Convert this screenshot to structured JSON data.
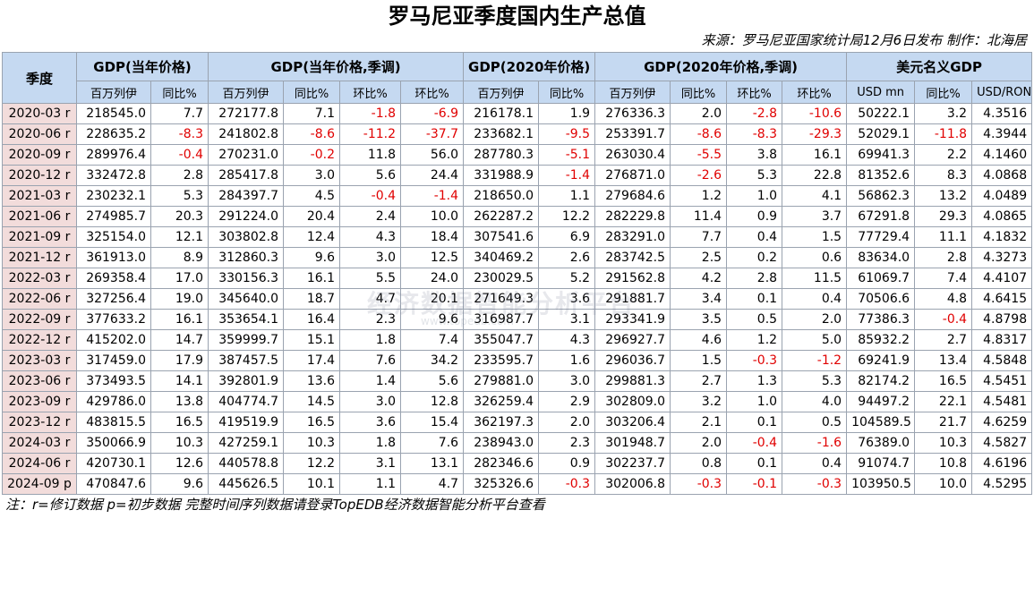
{
  "title": "罗马尼亚季度国内生产总值",
  "source": "来源：罗马尼亚国家统计局12月6日发布  制作：北海居",
  "watermark": {
    "text": "经济数据智能分析平台",
    "url": "www.topedb.com"
  },
  "header": {
    "quarter": "季度",
    "groups": [
      "GDP(当年价格)",
      "GDP(当年价格,季调)",
      "GDP(2020年价格)",
      "GDP(2020年价格,季调)",
      "美元名义GDP"
    ],
    "sub": [
      "百万列伊",
      "同比%",
      "百万列伊",
      "同比%",
      "环比%",
      "环比%",
      "百万列伊",
      "同比%",
      "百万列伊",
      "同比%",
      "环比%",
      "环比%",
      "USD mn",
      "同比%",
      "USD/RON"
    ]
  },
  "rows": [
    {
      "q": "2020-03 r",
      "v": [
        "218545.0",
        "7.7",
        "272177.8",
        "7.1",
        "-1.8",
        "-6.9",
        "216178.1",
        "1.9",
        "276336.3",
        "2.0",
        "-2.8",
        "-10.6",
        "50222.1",
        "3.2",
        "4.3516"
      ]
    },
    {
      "q": "2020-06 r",
      "v": [
        "228635.2",
        "-8.3",
        "241802.8",
        "-8.6",
        "-11.2",
        "-37.7",
        "233682.1",
        "-9.5",
        "253391.7",
        "-8.6",
        "-8.3",
        "-29.3",
        "52029.1",
        "-11.8",
        "4.3944"
      ]
    },
    {
      "q": "2020-09 r",
      "v": [
        "289976.4",
        "-0.4",
        "270231.0",
        "-0.2",
        "11.8",
        "56.0",
        "287780.3",
        "-5.1",
        "263030.4",
        "-5.5",
        "3.8",
        "16.1",
        "69941.3",
        "2.2",
        "4.1460"
      ]
    },
    {
      "q": "2020-12 r",
      "v": [
        "332472.8",
        "2.8",
        "285417.8",
        "3.0",
        "5.6",
        "24.4",
        "331988.9",
        "-1.4",
        "276871.0",
        "-2.6",
        "5.3",
        "22.8",
        "81352.6",
        "8.3",
        "4.0868"
      ]
    },
    {
      "q": "2021-03 r",
      "v": [
        "230232.1",
        "5.3",
        "284397.7",
        "4.5",
        "-0.4",
        "-1.4",
        "218650.0",
        "1.1",
        "279684.6",
        "1.2",
        "1.0",
        "4.1",
        "56862.3",
        "13.2",
        "4.0489"
      ]
    },
    {
      "q": "2021-06 r",
      "v": [
        "274985.7",
        "20.3",
        "291224.0",
        "20.4",
        "2.4",
        "10.0",
        "262287.2",
        "12.2",
        "282229.8",
        "11.4",
        "0.9",
        "3.7",
        "67291.8",
        "29.3",
        "4.0865"
      ]
    },
    {
      "q": "2021-09 r",
      "v": [
        "325154.0",
        "12.1",
        "303802.8",
        "12.4",
        "4.3",
        "18.4",
        "307541.6",
        "6.9",
        "283291.0",
        "7.7",
        "0.4",
        "1.5",
        "77729.4",
        "11.1",
        "4.1832"
      ]
    },
    {
      "q": "2021-12 r",
      "v": [
        "361913.0",
        "8.9",
        "312860.3",
        "9.6",
        "3.0",
        "12.5",
        "340469.2",
        "2.6",
        "283742.5",
        "2.5",
        "0.2",
        "0.6",
        "83634.0",
        "2.8",
        "4.3273"
      ]
    },
    {
      "q": "2022-03 r",
      "v": [
        "269358.4",
        "17.0",
        "330156.3",
        "16.1",
        "5.5",
        "24.0",
        "230029.5",
        "5.2",
        "291562.8",
        "4.2",
        "2.8",
        "11.5",
        "61069.7",
        "7.4",
        "4.4107"
      ]
    },
    {
      "q": "2022-06 r",
      "v": [
        "327256.4",
        "19.0",
        "345640.0",
        "18.7",
        "4.7",
        "20.1",
        "271649.3",
        "3.6",
        "291881.7",
        "3.4",
        "0.1",
        "0.4",
        "70506.6",
        "4.8",
        "4.6415"
      ]
    },
    {
      "q": "2022-09 r",
      "v": [
        "377633.2",
        "16.1",
        "353654.1",
        "16.4",
        "2.3",
        "9.6",
        "316987.7",
        "3.1",
        "293341.9",
        "3.5",
        "0.5",
        "2.0",
        "77386.3",
        "-0.4",
        "4.8798"
      ]
    },
    {
      "q": "2022-12 r",
      "v": [
        "415202.0",
        "14.7",
        "359999.7",
        "15.1",
        "1.8",
        "7.4",
        "355047.7",
        "4.3",
        "296927.7",
        "4.6",
        "1.2",
        "5.0",
        "85932.2",
        "2.7",
        "4.8317"
      ]
    },
    {
      "q": "2023-03 r",
      "v": [
        "317459.0",
        "17.9",
        "387457.5",
        "17.4",
        "7.6",
        "34.2",
        "233595.7",
        "1.6",
        "296036.7",
        "1.5",
        "-0.3",
        "-1.2",
        "69241.9",
        "13.4",
        "4.5848"
      ]
    },
    {
      "q": "2023-06 r",
      "v": [
        "373493.5",
        "14.1",
        "392801.9",
        "13.6",
        "1.4",
        "5.6",
        "279881.0",
        "3.0",
        "299881.3",
        "2.7",
        "1.3",
        "5.3",
        "82174.2",
        "16.5",
        "4.5451"
      ]
    },
    {
      "q": "2023-09 r",
      "v": [
        "429786.0",
        "13.8",
        "404774.7",
        "14.5",
        "3.0",
        "12.8",
        "326259.4",
        "2.9",
        "302809.0",
        "3.2",
        "1.0",
        "4.0",
        "94497.2",
        "22.1",
        "4.5481"
      ]
    },
    {
      "q": "2023-12 r",
      "v": [
        "483815.5",
        "16.5",
        "419519.9",
        "16.5",
        "3.6",
        "15.4",
        "362197.3",
        "2.0",
        "303206.4",
        "2.1",
        "0.1",
        "0.5",
        "104589.5",
        "21.7",
        "4.6259"
      ]
    },
    {
      "q": "2024-03 r",
      "v": [
        "350066.9",
        "10.3",
        "427259.1",
        "10.3",
        "1.8",
        "7.6",
        "238943.0",
        "2.3",
        "301948.7",
        "2.0",
        "-0.4",
        "-1.6",
        "76389.0",
        "10.3",
        "4.5827"
      ]
    },
    {
      "q": "2024-06 r",
      "v": [
        "420730.1",
        "12.6",
        "440578.8",
        "12.2",
        "3.1",
        "13.1",
        "282346.6",
        "0.9",
        "302237.7",
        "0.8",
        "0.1",
        "0.4",
        "91074.7",
        "10.8",
        "4.6196"
      ]
    },
    {
      "q": "2024-09 p",
      "v": [
        "470847.6",
        "9.6",
        "445626.5",
        "10.1",
        "1.1",
        "4.7",
        "325326.6",
        "-0.3",
        "302006.8",
        "-0.3",
        "-0.1",
        "-0.3",
        "103950.5",
        "10.0",
        "4.5295"
      ]
    }
  ],
  "note": "注：r=修订数据 p=初步数据 完整时间序列数据请登录TopEDB经济数据智能分析平台查看",
  "colors": {
    "header_bg": "#c5d9f1",
    "quarter_bg": "#f2dcdb",
    "negative": "#e00000"
  }
}
